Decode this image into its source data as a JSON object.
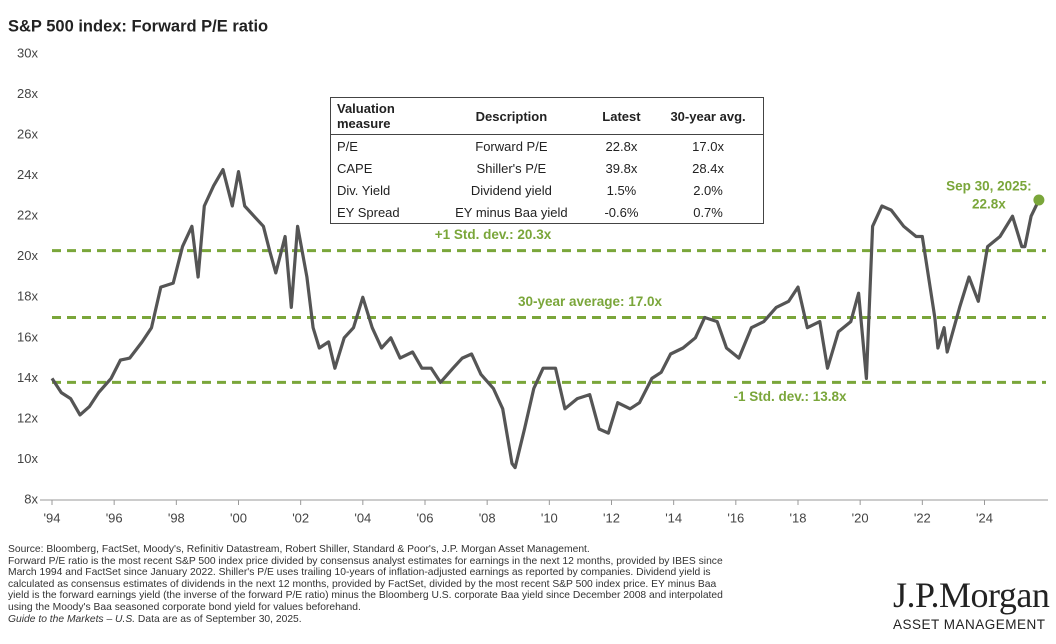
{
  "chart_data": {
    "type": "line",
    "title": "S&P 500 index: Forward P/E ratio",
    "x": [
      1994.0,
      1994.3,
      1994.6,
      1994.9,
      1995.2,
      1995.5,
      1995.9,
      1996.2,
      1996.5,
      1996.9,
      1997.2,
      1997.5,
      1997.9,
      1998.2,
      1998.5,
      1998.7,
      1998.9,
      1999.2,
      1999.5,
      1999.8,
      2000.0,
      2000.2,
      2000.5,
      2000.8,
      2001.0,
      2001.2,
      2001.5,
      2001.7,
      2001.9,
      2002.2,
      2002.4,
      2002.6,
      2002.9,
      2003.1,
      2003.4,
      2003.7,
      2004.0,
      2004.3,
      2004.6,
      2004.9,
      2005.2,
      2005.6,
      2005.9,
      2006.2,
      2006.5,
      2006.9,
      2007.2,
      2007.5,
      2007.8,
      2008.2,
      2008.5,
      2008.8,
      2008.9,
      2009.2,
      2009.5,
      2009.8,
      2010.2,
      2010.5,
      2010.9,
      2011.3,
      2011.6,
      2011.9,
      2012.2,
      2012.6,
      2012.9,
      2013.3,
      2013.6,
      2013.9,
      2014.3,
      2014.7,
      2015.0,
      2015.4,
      2015.7,
      2016.1,
      2016.5,
      2016.9,
      2017.3,
      2017.7,
      2018.0,
      2018.3,
      2018.7,
      2018.95,
      2019.3,
      2019.7,
      2019.95,
      2020.2,
      2020.4,
      2020.7,
      2021.0,
      2021.4,
      2021.8,
      2022.0,
      2022.4,
      2022.5,
      2022.7,
      2022.8,
      2023.2,
      2023.5,
      2023.8,
      2024.1,
      2024.5,
      2024.9,
      2025.2,
      2025.3,
      2025.5,
      2025.75
    ],
    "series": [
      {
        "color": "#555555",
        "values": [
          14.0,
          13.3,
          13.0,
          12.2,
          12.6,
          13.3,
          14.0,
          14.9,
          15.0,
          15.8,
          16.5,
          18.5,
          18.7,
          20.5,
          21.5,
          19.0,
          22.5,
          23.5,
          24.3,
          22.5,
          24.2,
          22.5,
          22.0,
          21.5,
          20.3,
          19.2,
          21.0,
          17.5,
          21.5,
          19.0,
          16.5,
          15.5,
          15.8,
          14.5,
          16.0,
          16.5,
          18.0,
          16.5,
          15.5,
          16.0,
          15.0,
          15.3,
          14.5,
          14.5,
          13.8,
          14.5,
          15.0,
          15.2,
          14.2,
          13.5,
          12.5,
          9.8,
          9.6,
          11.5,
          13.5,
          14.5,
          14.5,
          12.5,
          13.0,
          13.2,
          11.5,
          11.3,
          12.8,
          12.5,
          12.8,
          14.0,
          14.3,
          15.2,
          15.5,
          16.0,
          17.0,
          16.8,
          15.5,
          15.0,
          16.5,
          16.8,
          17.5,
          17.8,
          18.5,
          16.5,
          16.8,
          14.5,
          16.3,
          16.8,
          18.2,
          14.0,
          21.5,
          22.5,
          22.3,
          21.5,
          21.0,
          21.0,
          17.0,
          15.5,
          16.5,
          15.3,
          17.5,
          19.0,
          17.8,
          20.5,
          21.0,
          22.0,
          20.5,
          20.5,
          22.0,
          22.8
        ]
      }
    ],
    "xlim": [
      1994,
      2025.85
    ],
    "xticks": [
      {
        "value": 1994,
        "label": "'94"
      },
      {
        "value": 1996,
        "label": "'96"
      },
      {
        "value": 1998,
        "label": "'98"
      },
      {
        "value": 2000,
        "label": "'00"
      },
      {
        "value": 2002,
        "label": "'02"
      },
      {
        "value": 2004,
        "label": "'04"
      },
      {
        "value": 2006,
        "label": "'06"
      },
      {
        "value": 2008,
        "label": "'08"
      },
      {
        "value": 2010,
        "label": "'10"
      },
      {
        "value": 2012,
        "label": "'12"
      },
      {
        "value": 2014,
        "label": "'14"
      },
      {
        "value": 2016,
        "label": "'16"
      },
      {
        "value": 2018,
        "label": "'18"
      },
      {
        "value": 2020,
        "label": "'20"
      },
      {
        "value": 2022,
        "label": "'22"
      },
      {
        "value": 2024,
        "label": "'24"
      }
    ],
    "ylim": [
      8,
      30
    ],
    "yticks": [
      {
        "value": 8,
        "label": "8x"
      },
      {
        "value": 10,
        "label": "10x"
      },
      {
        "value": 12,
        "label": "12x"
      },
      {
        "value": 14,
        "label": "14x"
      },
      {
        "value": 16,
        "label": "16x"
      },
      {
        "value": 18,
        "label": "18x"
      },
      {
        "value": 20,
        "label": "20x"
      },
      {
        "value": 22,
        "label": "22x"
      },
      {
        "value": 24,
        "label": "24x"
      },
      {
        "value": 26,
        "label": "26x"
      },
      {
        "value": 28,
        "label": "28x"
      },
      {
        "value": 30,
        "label": "30x"
      }
    ],
    "reference_lines": [
      {
        "value": 20.3,
        "label": "+1 Std. dev.: 20.3x",
        "color": "#7aa63a"
      },
      {
        "value": 17.0,
        "label": "30-year average: 17.0x",
        "color": "#7aa63a"
      },
      {
        "value": 13.8,
        "label": "-1 Std. dev.: 13.8x",
        "color": "#7aa63a"
      }
    ],
    "end_annotation": {
      "lines": [
        "Sep 30, 2025:",
        "22.8x"
      ],
      "color": "#7aa63a"
    }
  },
  "table": {
    "columns": [
      "Valuation measure",
      "Description",
      "Latest",
      "30-year avg."
    ],
    "rows": [
      [
        "P/E",
        "Forward P/E",
        "22.8x",
        "17.0x"
      ],
      [
        "CAPE",
        "Shiller's P/E",
        "39.8x",
        "28.4x"
      ],
      [
        "Div. Yield",
        "Dividend yield",
        "1.5%",
        "2.0%"
      ],
      [
        "EY Spread",
        "EY minus Baa yield",
        "-0.6%",
        "0.7%"
      ]
    ]
  },
  "footer": [
    "Source: Bloomberg, FactSet, Moody's, Refinitiv Datastream, Robert Shiller, Standard & Poor's, J.P. Morgan Asset Management.",
    "Forward P/E ratio is the most recent S&P 500 index price divided by consensus analyst estimates for earnings in the next 12 months, provided by IBES since",
    "March 1994 and FactSet since January 2022. Shiller's P/E uses trailing 10-years of inflation-adjusted earnings as reported by companies. Dividend yield is",
    "calculated as consensus estimates of dividends in the next 12 months, provided by FactSet, divided by the most recent S&P 500 index price. EY minus Baa",
    "yield is the forward earnings yield (the inverse of the forward P/E ratio) minus the Bloomberg U.S. corporate Baa yield since December 2008 and interpolated",
    "using the Moody's Baa seasoned corporate bond yield for values beforehand."
  ],
  "footer_last": {
    "italic": "Guide to the Markets – U.S.",
    "text": " Data are as of September 30, 2025."
  },
  "logo": {
    "name": "J.P.Morgan",
    "subtitle": "ASSET MANAGEMENT"
  }
}
